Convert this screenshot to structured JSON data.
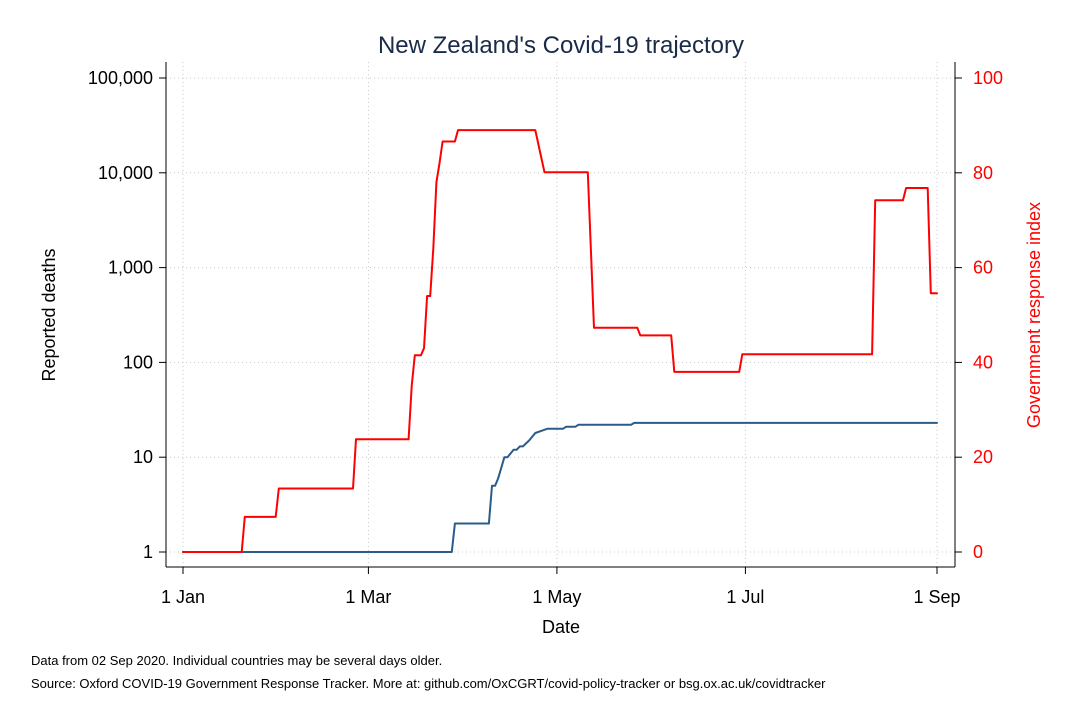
{
  "chart_data": {
    "type": "line",
    "title": "New Zealand's Covid-19 trajectory",
    "xlabel": "Date",
    "ylabel_left": "Reported deaths",
    "ylabel_right": "Government response index",
    "x_ticks": [
      {
        "date": "2020-01-01",
        "label": "1 Jan"
      },
      {
        "date": "2020-03-01",
        "label": "1 Mar"
      },
      {
        "date": "2020-05-01",
        "label": "1 May"
      },
      {
        "date": "2020-07-01",
        "label": "1 Jul"
      },
      {
        "date": "2020-09-01",
        "label": "1 Sep"
      }
    ],
    "xlim": [
      "2020-01-01",
      "2020-09-01"
    ],
    "y_left": {
      "scale": "log",
      "ylim": [
        1,
        100000
      ],
      "ticks": [
        {
          "value": 1,
          "label": "1"
        },
        {
          "value": 10,
          "label": "10"
        },
        {
          "value": 100,
          "label": "100"
        },
        {
          "value": 1000,
          "label": "1,000"
        },
        {
          "value": 10000,
          "label": "10,000"
        },
        {
          "value": 100000,
          "label": "100,000"
        }
      ]
    },
    "y_right": {
      "scale": "linear",
      "ylim": [
        0,
        100
      ],
      "ticks": [
        {
          "value": 0,
          "label": "0"
        },
        {
          "value": 20,
          "label": "20"
        },
        {
          "value": 40,
          "label": "40"
        },
        {
          "value": 60,
          "label": "60"
        },
        {
          "value": 80,
          "label": "80"
        },
        {
          "value": 100,
          "label": "100"
        }
      ]
    },
    "grid": true,
    "series": [
      {
        "axis": "left",
        "color": "#2a5c8a",
        "points": [
          [
            "2020-01-01",
            1
          ],
          [
            "2020-03-28",
            1
          ],
          [
            "2020-03-29",
            2
          ],
          [
            "2020-04-09",
            2
          ],
          [
            "2020-04-10",
            5
          ],
          [
            "2020-04-11",
            5
          ],
          [
            "2020-04-12",
            6
          ],
          [
            "2020-04-14",
            10
          ],
          [
            "2020-04-15",
            10
          ],
          [
            "2020-04-17",
            12
          ],
          [
            "2020-04-18",
            12
          ],
          [
            "2020-04-19",
            13
          ],
          [
            "2020-04-20",
            13
          ],
          [
            "2020-04-22",
            15
          ],
          [
            "2020-04-24",
            18
          ],
          [
            "2020-04-26",
            19
          ],
          [
            "2020-04-28",
            20
          ],
          [
            "2020-05-03",
            20
          ],
          [
            "2020-05-04",
            21
          ],
          [
            "2020-05-07",
            21
          ],
          [
            "2020-05-08",
            22
          ],
          [
            "2020-05-25",
            22
          ],
          [
            "2020-05-26",
            23
          ],
          [
            "2020-09-01",
            23
          ]
        ]
      },
      {
        "axis": "right",
        "color": "#ff0000",
        "points": [
          [
            "2020-01-01",
            0
          ],
          [
            "2020-01-20",
            0
          ],
          [
            "2020-01-21",
            7.4
          ],
          [
            "2020-01-31",
            7.4
          ],
          [
            "2020-02-01",
            13.4
          ],
          [
            "2020-02-25",
            13.4
          ],
          [
            "2020-02-26",
            23.8
          ],
          [
            "2020-03-14",
            23.8
          ],
          [
            "2020-03-15",
            35
          ],
          [
            "2020-03-16",
            41.5
          ],
          [
            "2020-03-18",
            41.5
          ],
          [
            "2020-03-19",
            43
          ],
          [
            "2020-03-20",
            54
          ],
          [
            "2020-03-21",
            54
          ],
          [
            "2020-03-22",
            64
          ],
          [
            "2020-03-23",
            78
          ],
          [
            "2020-03-24",
            82
          ],
          [
            "2020-03-25",
            86.6
          ],
          [
            "2020-03-29",
            86.6
          ],
          [
            "2020-03-30",
            89
          ],
          [
            "2020-04-24",
            89
          ],
          [
            "2020-04-26",
            83
          ],
          [
            "2020-04-27",
            80.1
          ],
          [
            "2020-05-11",
            80.1
          ],
          [
            "2020-05-13",
            47.3
          ],
          [
            "2020-05-27",
            47.3
          ],
          [
            "2020-05-28",
            45.7
          ],
          [
            "2020-06-07",
            45.7
          ],
          [
            "2020-06-08",
            38
          ],
          [
            "2020-06-29",
            38
          ],
          [
            "2020-06-30",
            41.7
          ],
          [
            "2020-08-11",
            41.7
          ],
          [
            "2020-08-12",
            74.2
          ],
          [
            "2020-08-21",
            74.2
          ],
          [
            "2020-08-22",
            76.8
          ],
          [
            "2020-08-29",
            76.8
          ],
          [
            "2020-08-30",
            54.6
          ],
          [
            "2020-09-01",
            54.6
          ]
        ]
      }
    ]
  },
  "notes": {
    "line1": "Data from 02 Sep 2020. Individual countries may be several days older.",
    "line2": "Source: Oxford COVID-19 Government Response Tracker. More at: github.com/OxCGRT/covid-policy-tracker or bsg.ox.ac.uk/covidtracker"
  }
}
